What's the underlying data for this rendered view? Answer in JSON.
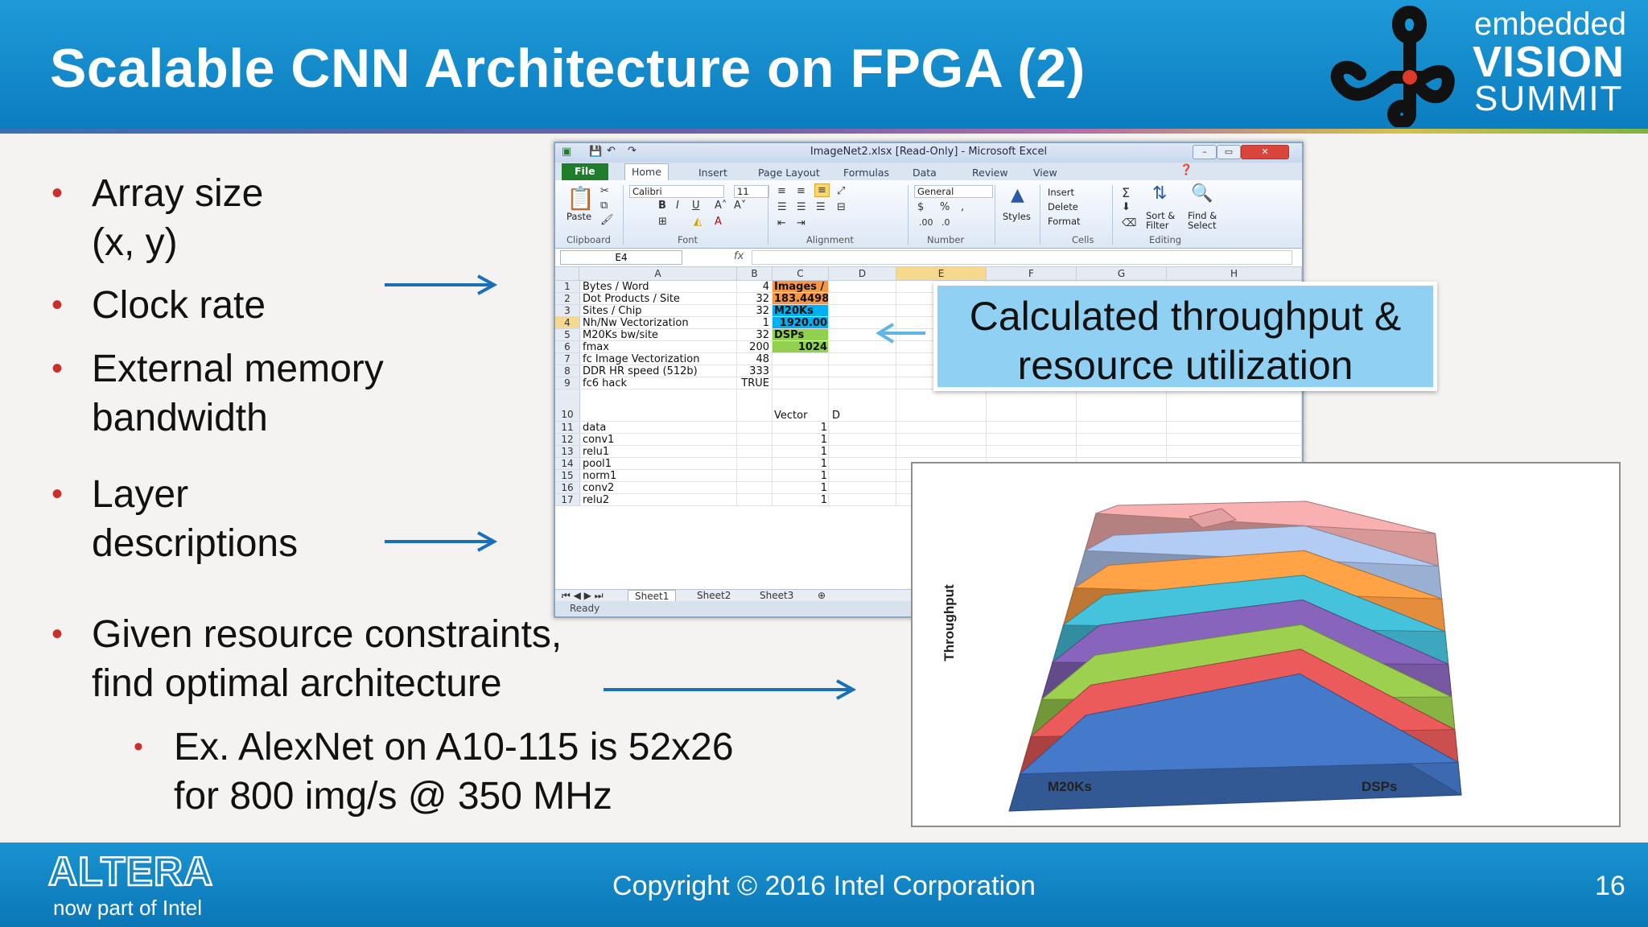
{
  "slide": {
    "title": "Scalable CNN Architecture on FPGA (2)",
    "page_number": "16",
    "copyright": "Copyright © 2016 Intel Corporation"
  },
  "logo": {
    "line1": "embedded",
    "line2": "VISION",
    "line3": "SUMMIT"
  },
  "altera": {
    "brand": "ALTERA",
    "sub": "now part of Intel"
  },
  "bullets": [
    {
      "line1": "Array size",
      "line2": "(x, y)"
    },
    {
      "line1": "Clock rate"
    },
    {
      "line1": "External memory",
      "line2": "bandwidth"
    },
    {
      "line1": "Layer",
      "line2": "descriptions"
    },
    {
      "line1": "Given resource constraints,",
      "line2": "find optimal architecture"
    }
  ],
  "sub_bullet": {
    "line1": "Ex. AlexNet on A10-115 is 52x26",
    "line2": "for 800 img/s @ 350 MHz"
  },
  "callout": {
    "line1": "Calculated throughput &",
    "line2": "resource utilization"
  },
  "excel": {
    "title": "ImageNet2.xlsx [Read-Only] - Microsoft Excel",
    "tabs": [
      "File",
      "Home",
      "Insert",
      "Page Layout",
      "Formulas",
      "Data",
      "Review",
      "View"
    ],
    "ribbon": {
      "paste": "Paste",
      "font_name": "Calibri",
      "font_size": "11",
      "number_format": "General",
      "styles": "Styles",
      "insert": "Insert",
      "delete": "Delete",
      "format": "Format",
      "sort": "Sort & Filter",
      "find": "Find & Select",
      "groups": [
        "Clipboard",
        "Font",
        "Alignment",
        "Number",
        "Cells",
        "Editing"
      ]
    },
    "name_box": "E4",
    "fx": "fx",
    "columns": [
      "A",
      "B",
      "C",
      "D",
      "E",
      "F",
      "G",
      "H"
    ],
    "rows": [
      {
        "n": "1",
        "a": "Bytes / Word",
        "b": "4",
        "c": "Images / s"
      },
      {
        "n": "2",
        "a": "Dot Products / Site",
        "b": "32",
        "c": "183.4498"
      },
      {
        "n": "3",
        "a": "Sites / Chip",
        "b": "32",
        "c": "M20Ks"
      },
      {
        "n": "4",
        "a": "Nh/Nw Vectorization",
        "b": "1",
        "c": "1920.00"
      },
      {
        "n": "5",
        "a": "M20Ks bw/site",
        "b": "32",
        "c": "DSPs"
      },
      {
        "n": "6",
        "a": "fmax",
        "b": "200",
        "c": "1024"
      },
      {
        "n": "7",
        "a": "fc Image Vectorization",
        "b": "48",
        "c": ""
      },
      {
        "n": "8",
        "a": "DDR HR speed (512b)",
        "b": "333",
        "c": ""
      },
      {
        "n": "9",
        "a": "fc6 hack",
        "b": "TRUE",
        "c": ""
      },
      {
        "n": "10",
        "a": "",
        "b": "",
        "c": "Vector",
        "d": "D"
      },
      {
        "n": "11",
        "a": "data",
        "b": "",
        "c": "1"
      },
      {
        "n": "12",
        "a": "conv1",
        "b": "",
        "c": "1"
      },
      {
        "n": "13",
        "a": "relu1",
        "b": "",
        "c": "1"
      },
      {
        "n": "14",
        "a": "pool1",
        "b": "",
        "c": "1"
      },
      {
        "n": "15",
        "a": "norm1",
        "b": "",
        "c": "1"
      },
      {
        "n": "16",
        "a": "conv2",
        "b": "",
        "c": "1"
      },
      {
        "n": "17",
        "a": "relu2",
        "b": "",
        "c": "1"
      }
    ],
    "sheets": [
      "Sheet1",
      "Sheet2",
      "Sheet3"
    ],
    "status": "Ready",
    "colors": {
      "images_header": "#f79646",
      "images_value": "#f79646",
      "m20ks": "#00b0f0",
      "dsps": "#92d050"
    }
  },
  "chart3d": {
    "y_label": "Throughput",
    "x_label_left": "M20Ks",
    "x_label_right": "DSPs",
    "layer_colors": [
      "#3f6fb8",
      "#d65353",
      "#8fbd47",
      "#7c5cab",
      "#3fb0c8",
      "#ef9440",
      "#a2b9de",
      "#e2a0a0"
    ]
  }
}
